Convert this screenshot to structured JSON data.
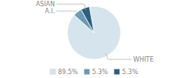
{
  "chart_data": {
    "type": "pie",
    "categories": [
      "WHITE",
      "A.I.",
      "ASIAN"
    ],
    "values": [
      89.5,
      5.3,
      5.3
    ],
    "value_labels": [
      "89.5%",
      "5.3%",
      "5.3%"
    ],
    "colors": [
      "#d6e4ee",
      "#6a9ab5",
      "#2d5f7a"
    ],
    "legend": "bottom"
  }
}
